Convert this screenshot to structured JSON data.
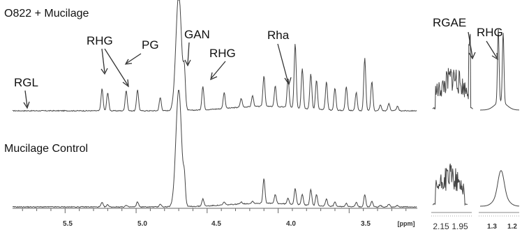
{
  "chart_data": {
    "type": "line",
    "spectra": [
      {
        "name": "O822 + Mucilage"
      },
      {
        "name": "Mucilage Control"
      }
    ],
    "annotations": [
      {
        "label": "RGL",
        "ppm": 5.78
      },
      {
        "label": "RHG",
        "ppm": 5.24
      },
      {
        "label": "RHG",
        "ppm": 5.07
      },
      {
        "label": "PG",
        "ppm": 5.07
      },
      {
        "label": "GAN",
        "ppm": 4.66
      },
      {
        "label": "RHG",
        "ppm": 4.52
      },
      {
        "label": "Rha",
        "ppm": 3.93
      },
      {
        "label": "RGAE",
        "ppm": 1.92
      },
      {
        "label": "RHG",
        "ppm": 1.24
      }
    ],
    "x_axis_main": {
      "ticks": [
        5.5,
        5.0,
        4.5,
        4.0,
        3.5
      ],
      "tick_labels": [
        "5.5",
        "5.0",
        "4.5",
        "4.0",
        "3.5"
      ],
      "unit": "[ppm]",
      "reversed": true
    },
    "x_axis_inset1": {
      "tick_labels": [
        "2.15",
        "1.95"
      ]
    },
    "x_axis_inset2": {
      "tick_labels": [
        "1.3",
        "1.2"
      ]
    },
    "peaks_main": [
      {
        "ppm": 5.24,
        "top": 0.3,
        "bottom": 0.06
      },
      {
        "ppm": 5.2,
        "top": 0.25,
        "bottom": 0.03
      },
      {
        "ppm": 5.07,
        "top": 0.28,
        "bottom": 0.02
      },
      {
        "ppm": 4.99,
        "top": 0.29,
        "bottom": 0.07
      },
      {
        "ppm": 4.83,
        "top": 0.18,
        "bottom": 0.04
      },
      {
        "ppm": 4.7,
        "top": 1.6,
        "bottom": 1.6
      },
      {
        "ppm": 4.66,
        "top": 0.44,
        "bottom": 0.3
      },
      {
        "ppm": 4.53,
        "top": 0.32,
        "bottom": 0.1
      },
      {
        "ppm": 4.38,
        "top": 0.22,
        "bottom": 0.04
      },
      {
        "ppm": 4.26,
        "top": 0.12,
        "bottom": 0.03
      },
      {
        "ppm": 4.18,
        "top": 0.15,
        "bottom": 0.03
      },
      {
        "ppm": 4.1,
        "top": 0.42,
        "bottom": 0.34
      },
      {
        "ppm": 4.02,
        "top": 0.28,
        "bottom": 0.12
      },
      {
        "ppm": 3.93,
        "top": 0.4,
        "bottom": 0.08
      },
      {
        "ppm": 3.88,
        "top": 0.88,
        "bottom": 0.22
      },
      {
        "ppm": 3.83,
        "top": 0.55,
        "bottom": 0.15
      },
      {
        "ppm": 3.77,
        "top": 0.48,
        "bottom": 0.22
      },
      {
        "ppm": 3.73,
        "top": 0.4,
        "bottom": 0.15
      },
      {
        "ppm": 3.66,
        "top": 0.38,
        "bottom": 0.1
      },
      {
        "ppm": 3.6,
        "top": 0.3,
        "bottom": 0.06
      },
      {
        "ppm": 3.52,
        "top": 0.33,
        "bottom": 0.05
      },
      {
        "ppm": 3.45,
        "top": 0.25,
        "bottom": 0.06
      },
      {
        "ppm": 3.39,
        "top": 0.72,
        "bottom": 0.17
      },
      {
        "ppm": 3.34,
        "top": 0.4,
        "bottom": 0.08
      },
      {
        "ppm": 3.28,
        "top": 0.08,
        "bottom": 0.02
      },
      {
        "ppm": 3.22,
        "top": 0.1,
        "bottom": 0.04
      },
      {
        "ppm": 3.16,
        "top": 0.06,
        "bottom": 0.02
      }
    ]
  }
}
